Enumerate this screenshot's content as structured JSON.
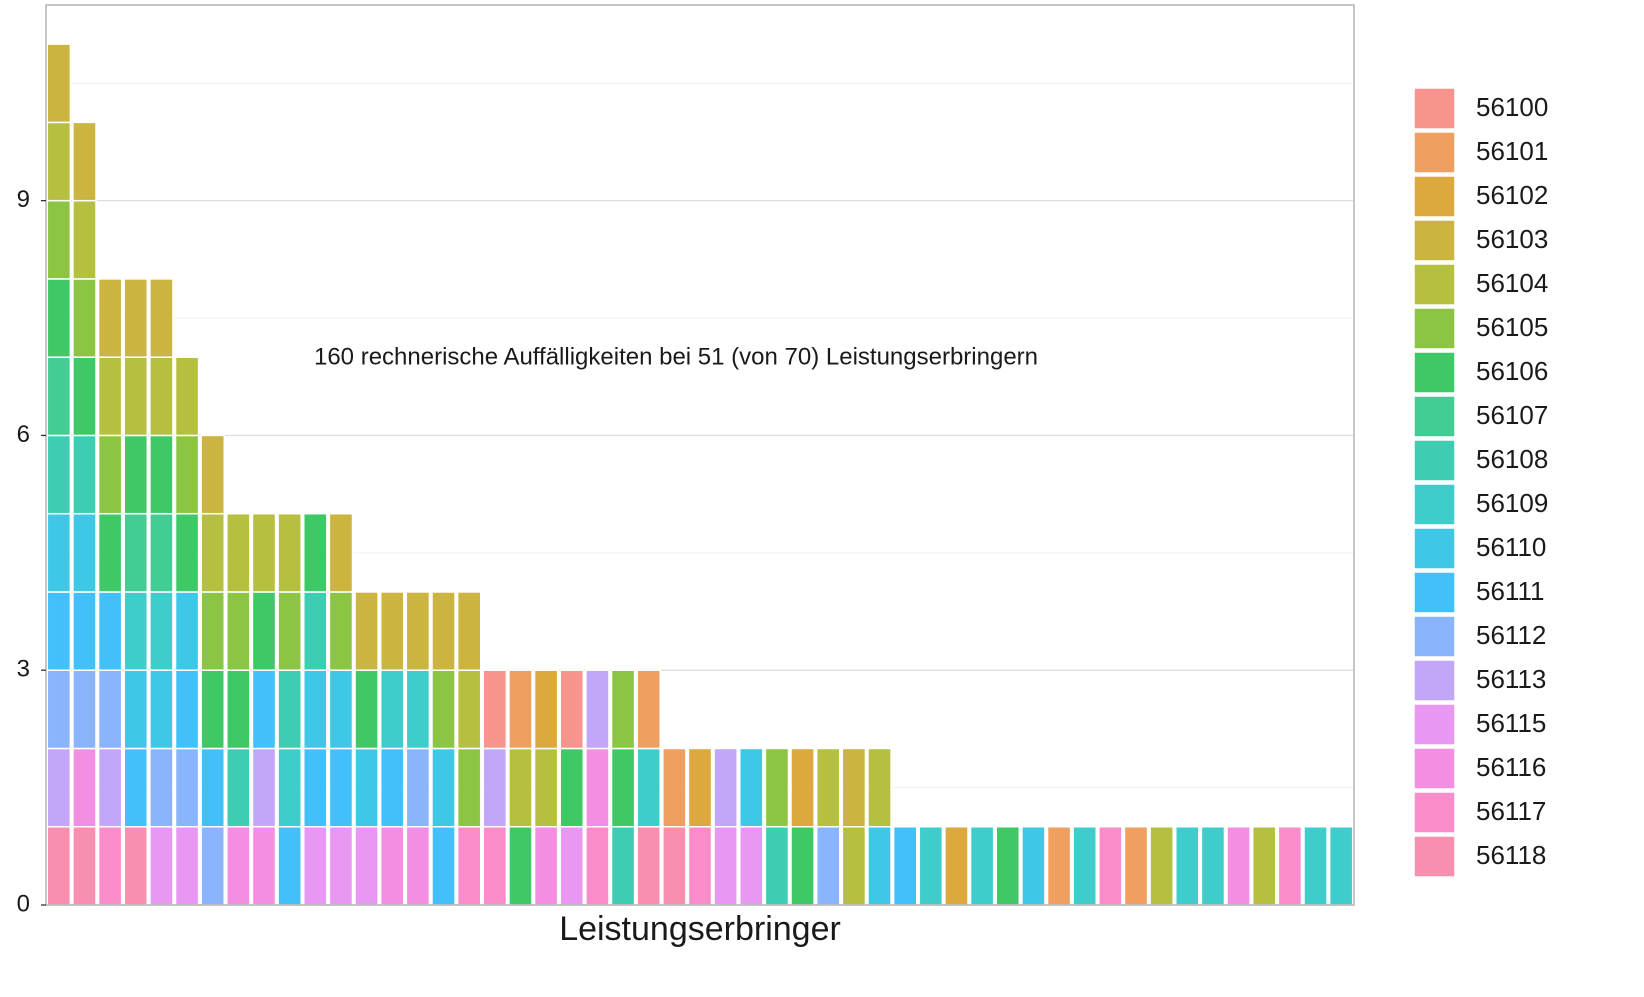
{
  "chart_data": {
    "type": "stacked_bar",
    "annotation": "160 rechnerische Auffälligkeiten bei 51 (von 70) Leistungserbringern",
    "x_label": "Leistungserbringer",
    "ylim": [
      0,
      11.5
    ],
    "yticks": [
      0,
      3,
      6,
      9
    ],
    "minor_yticks": [
      1.5,
      4.5,
      7.5,
      10.5
    ],
    "grid": true,
    "legend": "right",
    "series": [
      {
        "name": "56100",
        "color": "#F7948E",
        "values": [
          0,
          0,
          0,
          0,
          0,
          0,
          0,
          0,
          0,
          0,
          0,
          0,
          0,
          0,
          0,
          0,
          0,
          1,
          0,
          0,
          1,
          0,
          0,
          0,
          0,
          0,
          0,
          0,
          0,
          0,
          0,
          0,
          0,
          0,
          0,
          0,
          0,
          0,
          0,
          0,
          0,
          0,
          0,
          0,
          0,
          0,
          0,
          0,
          0,
          0,
          0
        ]
      },
      {
        "name": "56101",
        "color": "#EFA060",
        "values": [
          0,
          0,
          0,
          0,
          0,
          0,
          0,
          0,
          0,
          0,
          0,
          0,
          0,
          0,
          0,
          0,
          0,
          0,
          1,
          0,
          0,
          0,
          0,
          1,
          1,
          0,
          0,
          0,
          0,
          0,
          0,
          0,
          0,
          0,
          0,
          0,
          0,
          0,
          0,
          1,
          0,
          0,
          1,
          0,
          0,
          0,
          0,
          0,
          0,
          0,
          0
        ]
      },
      {
        "name": "56102",
        "color": "#DDA83D",
        "values": [
          0,
          0,
          0,
          0,
          0,
          0,
          0,
          0,
          0,
          0,
          0,
          0,
          0,
          0,
          0,
          0,
          0,
          0,
          0,
          1,
          0,
          0,
          0,
          0,
          0,
          1,
          0,
          0,
          0,
          1,
          0,
          0,
          0,
          0,
          0,
          1,
          0,
          0,
          0,
          0,
          0,
          0,
          0,
          0,
          0,
          0,
          0,
          0,
          0,
          0,
          0
        ]
      },
      {
        "name": "56103",
        "color": "#CBB43F",
        "values": [
          1,
          1,
          1,
          1,
          1,
          0,
          1,
          0,
          0,
          0,
          0,
          1,
          1,
          1,
          1,
          1,
          1,
          0,
          0,
          0,
          0,
          0,
          0,
          0,
          0,
          0,
          0,
          0,
          0,
          0,
          0,
          1,
          0,
          0,
          0,
          0,
          0,
          0,
          0,
          0,
          0,
          0,
          0,
          0,
          0,
          0,
          0,
          0,
          0,
          0,
          0
        ]
      },
      {
        "name": "56104",
        "color": "#B5C040",
        "values": [
          1,
          1,
          1,
          1,
          1,
          1,
          1,
          1,
          1,
          1,
          0,
          0,
          0,
          0,
          0,
          0,
          1,
          0,
          1,
          1,
          0,
          0,
          0,
          0,
          0,
          0,
          0,
          0,
          0,
          0,
          1,
          1,
          1,
          0,
          0,
          0,
          0,
          0,
          0,
          0,
          0,
          0,
          0,
          1,
          0,
          0,
          0,
          1,
          0,
          0,
          0
        ]
      },
      {
        "name": "56105",
        "color": "#8CC544",
        "values": [
          1,
          1,
          1,
          0,
          0,
          1,
          1,
          1,
          0,
          1,
          0,
          1,
          0,
          0,
          0,
          1,
          1,
          0,
          0,
          0,
          0,
          0,
          1,
          0,
          0,
          0,
          0,
          0,
          1,
          0,
          0,
          0,
          0,
          0,
          0,
          0,
          0,
          0,
          0,
          0,
          0,
          0,
          0,
          0,
          0,
          0,
          0,
          0,
          0,
          0,
          0
        ]
      },
      {
        "name": "56106",
        "color": "#3EC966",
        "values": [
          1,
          1,
          1,
          1,
          1,
          1,
          1,
          1,
          1,
          0,
          1,
          0,
          1,
          0,
          0,
          0,
          0,
          0,
          1,
          0,
          1,
          0,
          1,
          0,
          0,
          0,
          0,
          0,
          0,
          1,
          0,
          0,
          0,
          0,
          0,
          0,
          0,
          1,
          0,
          0,
          0,
          0,
          0,
          0,
          0,
          0,
          0,
          0,
          0,
          0,
          0
        ]
      },
      {
        "name": "56107",
        "color": "#43CC93",
        "values": [
          1,
          0,
          0,
          1,
          1,
          0,
          0,
          0,
          0,
          0,
          0,
          0,
          0,
          0,
          0,
          0,
          0,
          0,
          0,
          0,
          0,
          0,
          0,
          0,
          0,
          0,
          0,
          0,
          0,
          0,
          0,
          0,
          0,
          0,
          0,
          0,
          0,
          0,
          0,
          0,
          0,
          0,
          0,
          0,
          0,
          0,
          0,
          0,
          0,
          0,
          0
        ]
      },
      {
        "name": "56108",
        "color": "#3ECDB3",
        "values": [
          1,
          1,
          0,
          0,
          0,
          0,
          0,
          1,
          0,
          1,
          1,
          0,
          0,
          0,
          0,
          0,
          0,
          0,
          0,
          0,
          0,
          0,
          1,
          0,
          0,
          0,
          0,
          0,
          1,
          0,
          0,
          0,
          0,
          0,
          0,
          0,
          0,
          0,
          0,
          0,
          0,
          0,
          0,
          0,
          0,
          0,
          0,
          0,
          0,
          0,
          0
        ]
      },
      {
        "name": "56109",
        "color": "#3FCDCB",
        "values": [
          0,
          0,
          0,
          1,
          1,
          0,
          0,
          0,
          0,
          1,
          0,
          0,
          0,
          1,
          1,
          0,
          0,
          0,
          0,
          0,
          0,
          0,
          0,
          1,
          0,
          0,
          0,
          0,
          0,
          0,
          0,
          0,
          0,
          0,
          1,
          0,
          1,
          0,
          0,
          0,
          1,
          0,
          0,
          0,
          1,
          1,
          0,
          0,
          0,
          1,
          1
        ]
      },
      {
        "name": "56110",
        "color": "#3EC8E5",
        "values": [
          1,
          1,
          0,
          1,
          1,
          1,
          0,
          0,
          0,
          0,
          1,
          1,
          1,
          0,
          0,
          1,
          0,
          0,
          0,
          0,
          0,
          0,
          0,
          0,
          0,
          0,
          0,
          1,
          0,
          0,
          0,
          0,
          1,
          0,
          0,
          0,
          0,
          0,
          1,
          0,
          0,
          0,
          0,
          0,
          0,
          0,
          0,
          0,
          0,
          0,
          0
        ]
      },
      {
        "name": "56111",
        "color": "#41C0FA",
        "values": [
          1,
          1,
          1,
          1,
          0,
          1,
          1,
          0,
          1,
          1,
          1,
          1,
          0,
          1,
          0,
          1,
          0,
          0,
          0,
          0,
          0,
          0,
          0,
          0,
          0,
          0,
          0,
          0,
          0,
          0,
          0,
          0,
          0,
          1,
          0,
          0,
          0,
          0,
          0,
          0,
          0,
          0,
          0,
          0,
          0,
          0,
          0,
          0,
          0,
          0,
          0
        ]
      },
      {
        "name": "56112",
        "color": "#8AB4FB",
        "values": [
          1,
          1,
          1,
          0,
          1,
          1,
          1,
          0,
          0,
          0,
          0,
          0,
          0,
          0,
          1,
          0,
          0,
          0,
          0,
          0,
          0,
          0,
          0,
          0,
          0,
          0,
          0,
          0,
          0,
          0,
          1,
          0,
          0,
          0,
          0,
          0,
          0,
          0,
          0,
          0,
          0,
          0,
          0,
          0,
          0,
          0,
          0,
          0,
          0,
          0,
          0
        ]
      },
      {
        "name": "56113",
        "color": "#C2A6F8",
        "values": [
          1,
          0,
          1,
          0,
          0,
          0,
          0,
          0,
          1,
          0,
          0,
          0,
          0,
          0,
          0,
          0,
          0,
          1,
          0,
          0,
          0,
          1,
          0,
          0,
          0,
          0,
          1,
          0,
          0,
          0,
          0,
          0,
          0,
          0,
          0,
          0,
          0,
          0,
          0,
          0,
          0,
          0,
          0,
          0,
          0,
          0,
          0,
          0,
          0,
          0,
          0
        ]
      },
      {
        "name": "56115",
        "color": "#E898F3",
        "values": [
          0,
          0,
          0,
          0,
          1,
          1,
          0,
          0,
          0,
          0,
          1,
          1,
          1,
          0,
          0,
          0,
          0,
          0,
          0,
          0,
          1,
          0,
          0,
          0,
          0,
          0,
          1,
          1,
          0,
          0,
          0,
          0,
          0,
          0,
          0,
          0,
          0,
          0,
          0,
          0,
          0,
          0,
          0,
          0,
          0,
          0,
          0,
          0,
          0,
          0,
          0
        ]
      },
      {
        "name": "56116",
        "color": "#F38EE2",
        "values": [
          0,
          1,
          0,
          0,
          0,
          0,
          0,
          1,
          1,
          0,
          0,
          0,
          0,
          1,
          1,
          0,
          0,
          0,
          0,
          1,
          0,
          1,
          0,
          0,
          0,
          0,
          0,
          0,
          0,
          0,
          0,
          0,
          0,
          0,
          0,
          0,
          0,
          0,
          0,
          0,
          0,
          0,
          0,
          0,
          0,
          0,
          1,
          0,
          0,
          0,
          0
        ]
      },
      {
        "name": "56117",
        "color": "#F98DCB",
        "values": [
          0,
          0,
          1,
          0,
          0,
          0,
          0,
          0,
          0,
          0,
          0,
          0,
          0,
          0,
          0,
          0,
          1,
          1,
          0,
          0,
          0,
          1,
          0,
          0,
          0,
          1,
          0,
          0,
          0,
          0,
          0,
          0,
          0,
          0,
          0,
          0,
          0,
          0,
          0,
          0,
          0,
          1,
          0,
          0,
          0,
          0,
          0,
          0,
          1,
          0,
          0
        ]
      },
      {
        "name": "56118",
        "color": "#F98FAE",
        "values": [
          1,
          1,
          0,
          1,
          0,
          0,
          0,
          0,
          0,
          0,
          0,
          0,
          0,
          0,
          0,
          0,
          0,
          0,
          0,
          0,
          0,
          0,
          0,
          1,
          1,
          0,
          0,
          0,
          0,
          0,
          0,
          0,
          0,
          0,
          0,
          0,
          0,
          0,
          0,
          0,
          0,
          0,
          0,
          0,
          0,
          0,
          0,
          0,
          0,
          0,
          0
        ]
      }
    ]
  }
}
